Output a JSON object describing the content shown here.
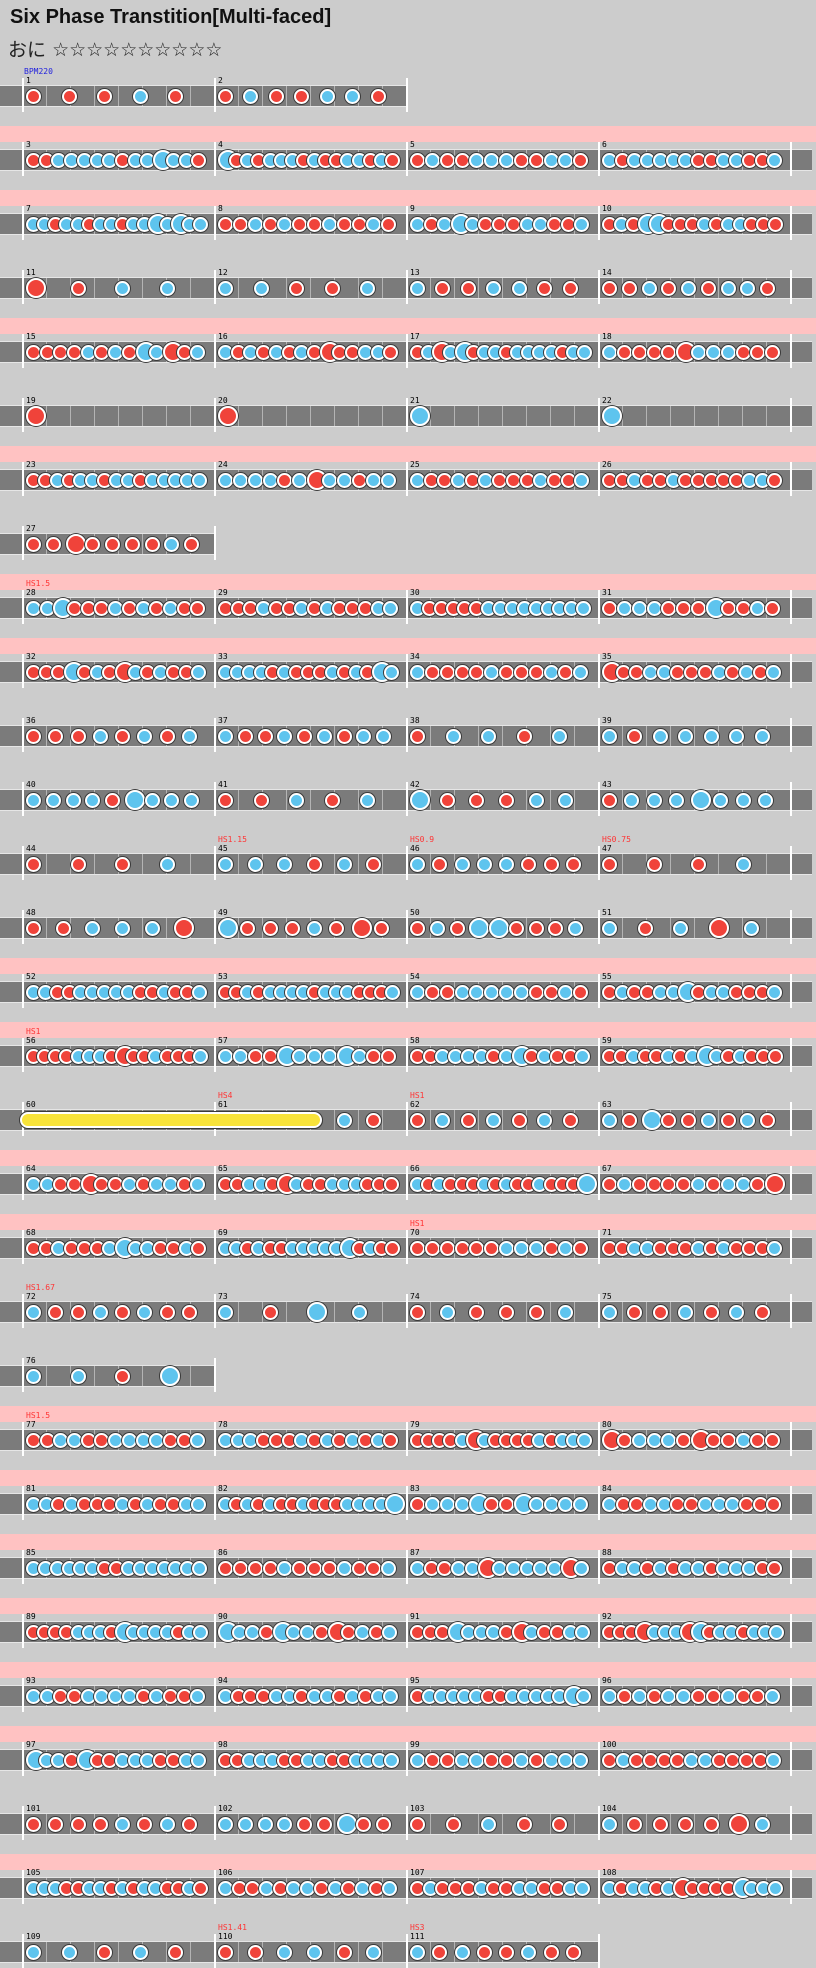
{
  "title": "Six Phase Transtition[Multi-faced]",
  "difficulty": {
    "label": "おに",
    "stars": "☆☆☆☆☆☆☆☆☆☆"
  },
  "colors": {
    "don": "#f0433a",
    "ka": "#5ec4ee",
    "roll": "#f8e33a",
    "lane": "#7b7b7b",
    "gogo_highlight": "#ffc2c2",
    "speed_text": "#ff3333",
    "bpm_text": "#2222dd"
  },
  "notes_legend": {
    "d": "don",
    "k": "ka",
    "D": "big-don",
    "K": "big-ka"
  },
  "measures_per_row": 4,
  "rows": [
    {
      "gogo": false,
      "bpm": "BPM220",
      "measures": [
        {
          "n": "1",
          "notes": "D"
        },
        {
          "n": "2",
          "notes": ""
        }
      ]
    },
    {
      "gogo": true,
      "measures": [
        {
          "n": "3",
          "notes": ""
        },
        {
          "n": "4",
          "notes": ""
        },
        {
          "n": "5",
          "notes": ""
        },
        {
          "n": "6",
          "notes": ""
        }
      ]
    },
    {
      "gogo": true,
      "measures": [
        {
          "n": "7",
          "notes": ""
        },
        {
          "n": "8",
          "notes": ""
        },
        {
          "n": "9",
          "notes": ""
        },
        {
          "n": "10",
          "notes": ""
        }
      ]
    },
    {
      "gogo": false,
      "measures": [
        {
          "n": "11",
          "notes": ""
        },
        {
          "n": "12",
          "notes": ""
        },
        {
          "n": "13",
          "notes": ""
        },
        {
          "n": "14",
          "notes": ""
        }
      ]
    },
    {
      "gogo": true,
      "measures": [
        {
          "n": "15",
          "notes": ""
        },
        {
          "n": "16",
          "notes": ""
        },
        {
          "n": "17",
          "notes": ""
        },
        {
          "n": "18",
          "notes": ""
        }
      ]
    },
    {
      "gogo": false,
      "measures": [
        {
          "n": "19",
          "notes": ""
        },
        {
          "n": "20",
          "notes": ""
        },
        {
          "n": "21",
          "notes": ""
        },
        {
          "n": "22",
          "notes": ""
        }
      ]
    },
    {
      "gogo": true,
      "measures": [
        {
          "n": "23",
          "notes": ""
        },
        {
          "n": "24",
          "notes": ""
        },
        {
          "n": "25",
          "notes": ""
        },
        {
          "n": "26",
          "notes": ""
        }
      ]
    },
    {
      "gogo": false,
      "measures": [
        {
          "n": "27",
          "notes": ""
        }
      ]
    },
    {
      "gogo": true,
      "measures": [
        {
          "n": "28",
          "notes": "",
          "hs": "HS1.5"
        },
        {
          "n": "29",
          "notes": ""
        },
        {
          "n": "30",
          "notes": ""
        },
        {
          "n": "31",
          "notes": ""
        }
      ]
    },
    {
      "gogo": true,
      "measures": [
        {
          "n": "32",
          "notes": ""
        },
        {
          "n": "33",
          "notes": ""
        },
        {
          "n": "34",
          "notes": ""
        },
        {
          "n": "35",
          "notes": ""
        }
      ]
    },
    {
      "gogo": false,
      "measures": [
        {
          "n": "36",
          "notes": ""
        },
        {
          "n": "37",
          "notes": ""
        },
        {
          "n": "38",
          "notes": ""
        },
        {
          "n": "39",
          "notes": ""
        }
      ]
    },
    {
      "gogo": false,
      "measures": [
        {
          "n": "40",
          "notes": ""
        },
        {
          "n": "41",
          "notes": ""
        },
        {
          "n": "42",
          "notes": ""
        },
        {
          "n": "43",
          "notes": ""
        }
      ]
    },
    {
      "gogo": false,
      "measures": [
        {
          "n": "44",
          "notes": ""
        },
        {
          "n": "45",
          "notes": "",
          "hs": "HS1.15"
        },
        {
          "n": "46",
          "notes": "",
          "hs": "HS0.9"
        },
        {
          "n": "47",
          "notes": "",
          "hs": "HS0.75"
        }
      ]
    },
    {
      "gogo": false,
      "measures": [
        {
          "n": "48",
          "notes": ""
        },
        {
          "n": "49",
          "notes": ""
        },
        {
          "n": "50",
          "notes": ""
        },
        {
          "n": "51",
          "notes": ""
        }
      ]
    },
    {
      "gogo": true,
      "measures": [
        {
          "n": "52",
          "notes": ""
        },
        {
          "n": "53",
          "notes": ""
        },
        {
          "n": "54",
          "notes": ""
        },
        {
          "n": "55",
          "notes": ""
        }
      ]
    },
    {
      "gogo": true,
      "measures": [
        {
          "n": "56",
          "notes": "",
          "hs": "HS1"
        },
        {
          "n": "57",
          "notes": ""
        },
        {
          "n": "58",
          "notes": ""
        },
        {
          "n": "59",
          "notes": ""
        }
      ]
    },
    {
      "gogo": false,
      "measures": [
        {
          "n": "60",
          "notes": ""
        },
        {
          "n": "61",
          "notes": "",
          "hs": "HS4"
        },
        {
          "n": "62",
          "notes": "",
          "hs": "HS1"
        },
        {
          "n": "63",
          "notes": ""
        }
      ]
    },
    {
      "gogo": true,
      "measures": [
        {
          "n": "64",
          "notes": ""
        },
        {
          "n": "65",
          "notes": ""
        },
        {
          "n": "66",
          "notes": ""
        },
        {
          "n": "67",
          "notes": ""
        }
      ]
    },
    {
      "gogo": true,
      "measures": [
        {
          "n": "68",
          "notes": ""
        },
        {
          "n": "69",
          "notes": ""
        },
        {
          "n": "70",
          "notes": "",
          "hs": "HS1"
        },
        {
          "n": "71",
          "notes": ""
        }
      ]
    },
    {
      "gogo": false,
      "measures": [
        {
          "n": "72",
          "notes": "",
          "hs": "HS1.67"
        },
        {
          "n": "73",
          "notes": ""
        },
        {
          "n": "74",
          "notes": ""
        },
        {
          "n": "75",
          "notes": ""
        }
      ]
    },
    {
      "gogo": false,
      "measures": [
        {
          "n": "76",
          "notes": ""
        }
      ]
    },
    {
      "gogo": true,
      "measures": [
        {
          "n": "77",
          "notes": "",
          "hs": "HS1.5"
        },
        {
          "n": "78",
          "notes": ""
        },
        {
          "n": "79",
          "notes": ""
        },
        {
          "n": "80",
          "notes": ""
        }
      ]
    },
    {
      "gogo": true,
      "measures": [
        {
          "n": "81",
          "notes": ""
        },
        {
          "n": "82",
          "notes": ""
        },
        {
          "n": "83",
          "notes": ""
        },
        {
          "n": "84",
          "notes": ""
        }
      ]
    },
    {
      "gogo": true,
      "measures": [
        {
          "n": "85",
          "notes": ""
        },
        {
          "n": "86",
          "notes": ""
        },
        {
          "n": "87",
          "notes": ""
        },
        {
          "n": "88",
          "notes": ""
        }
      ]
    },
    {
      "gogo": true,
      "measures": [
        {
          "n": "89",
          "notes": ""
        },
        {
          "n": "90",
          "notes": ""
        },
        {
          "n": "91",
          "notes": ""
        },
        {
          "n": "92",
          "notes": ""
        }
      ]
    },
    {
      "gogo": true,
      "measures": [
        {
          "n": "93",
          "notes": ""
        },
        {
          "n": "94",
          "notes": ""
        },
        {
          "n": "95",
          "notes": ""
        },
        {
          "n": "96",
          "notes": ""
        }
      ]
    },
    {
      "gogo": true,
      "measures": [
        {
          "n": "97",
          "notes": ""
        },
        {
          "n": "98",
          "notes": ""
        },
        {
          "n": "99",
          "notes": ""
        },
        {
          "n": "100",
          "notes": ""
        }
      ]
    },
    {
      "gogo": false,
      "measures": [
        {
          "n": "101",
          "notes": ""
        },
        {
          "n": "102",
          "notes": ""
        },
        {
          "n": "103",
          "notes": ""
        },
        {
          "n": "104",
          "notes": ""
        }
      ]
    },
    {
      "gogo": true,
      "measures": [
        {
          "n": "105",
          "notes": ""
        },
        {
          "n": "106",
          "notes": ""
        },
        {
          "n": "107",
          "notes": ""
        },
        {
          "n": "108",
          "notes": ""
        }
      ]
    },
    {
      "gogo": false,
      "measures": [
        {
          "n": "109",
          "notes": ""
        },
        {
          "n": "110",
          "notes": "",
          "hs": "HS1.41"
        },
        {
          "n": "111",
          "notes": "",
          "hs": "HS3"
        }
      ]
    }
  ]
}
